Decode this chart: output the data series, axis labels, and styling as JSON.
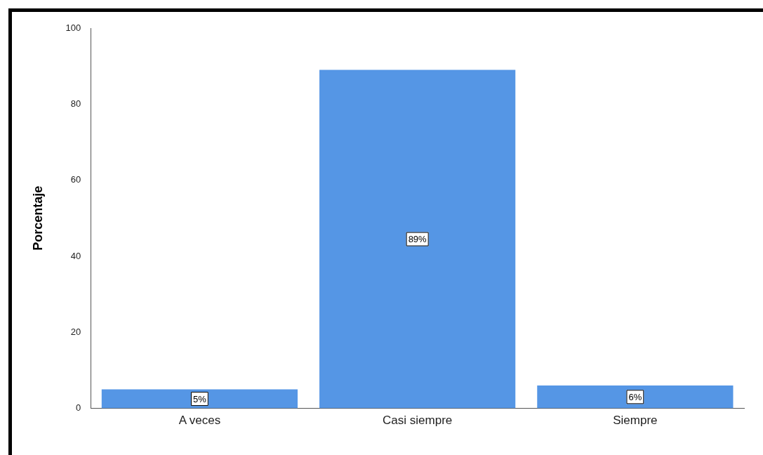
{
  "chart_data": {
    "type": "bar",
    "ylabel": "Porcentaje",
    "categories": [
      "A veces",
      "Casi siempre",
      "Siempre"
    ],
    "values": [
      5,
      89,
      6
    ],
    "value_labels": [
      "5%",
      "89%",
      "6%"
    ],
    "color": "#5596e5",
    "ylim": [
      0,
      100
    ],
    "yticks": [
      0,
      20,
      40,
      60,
      80,
      100
    ],
    "grid": false,
    "legend": false
  }
}
